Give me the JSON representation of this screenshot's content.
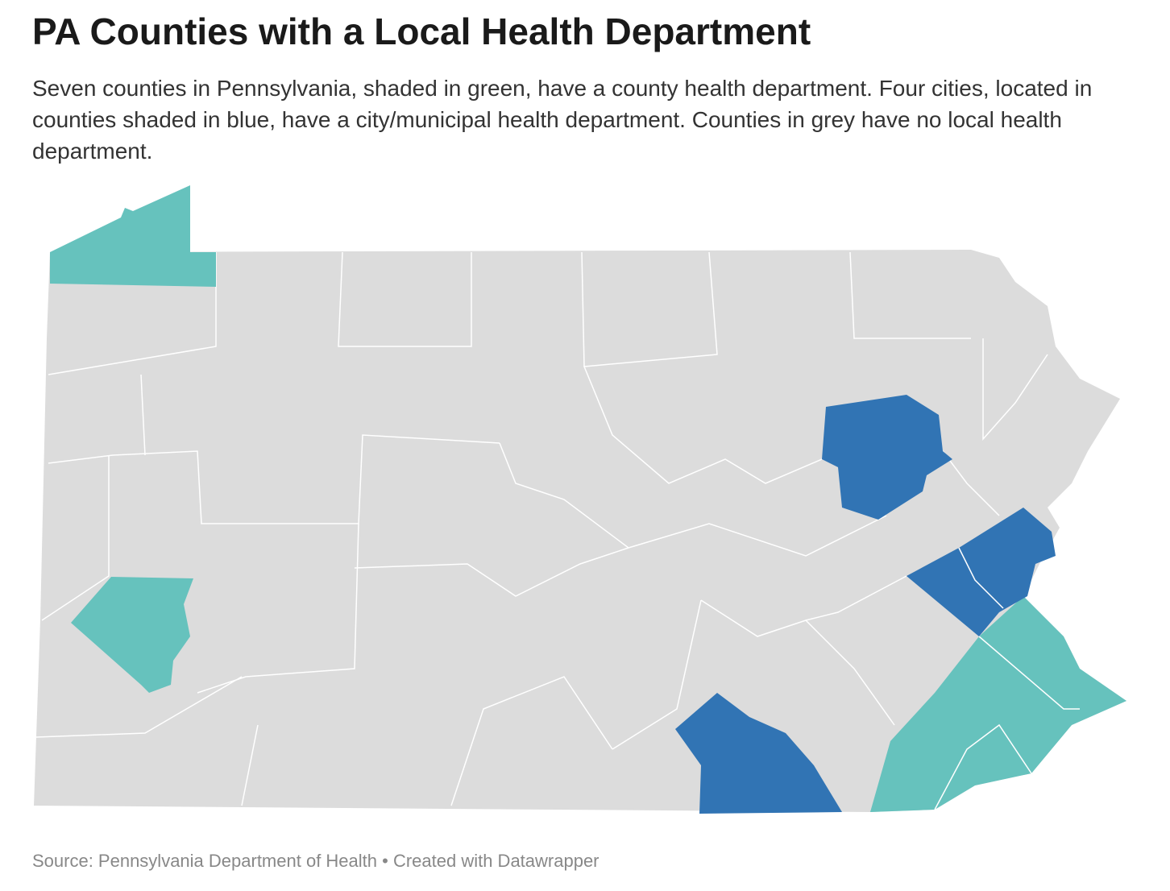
{
  "header": {
    "title": "PA Counties with a Local Health Department",
    "description": "Seven counties in Pennsylvania, shaded in green, have a county health department. Four cities, located in counties shaded in blue, have a city/municipal health department. Counties in grey have no local health department."
  },
  "footer": {
    "source": "Source: Pennsylvania Department of Health • Created with Datawrapper"
  }
}
